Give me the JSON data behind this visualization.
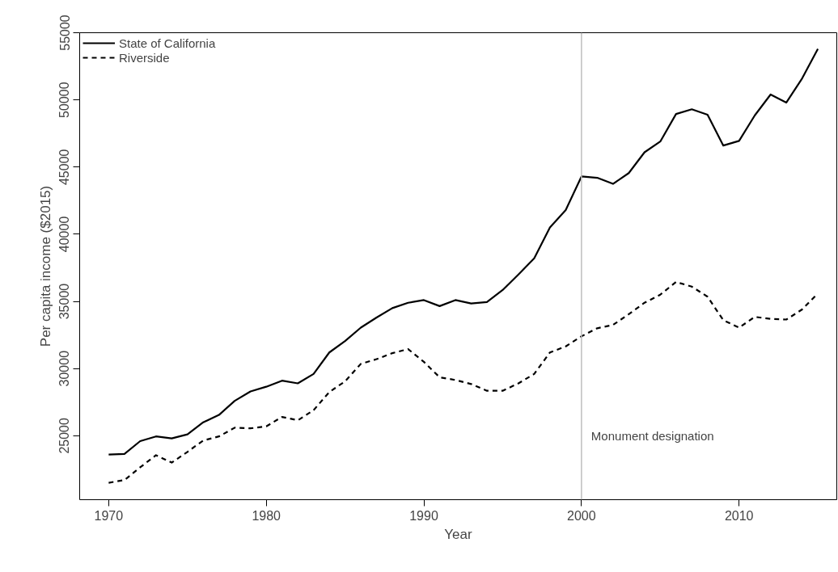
{
  "chart_data": {
    "type": "line",
    "xlabel": "Year",
    "ylabel": "Per capita income ($2015)",
    "x": [
      1970,
      1971,
      1972,
      1973,
      1974,
      1975,
      1976,
      1977,
      1978,
      1979,
      1980,
      1981,
      1982,
      1983,
      1984,
      1985,
      1986,
      1987,
      1988,
      1989,
      1990,
      1991,
      1992,
      1993,
      1994,
      1995,
      1996,
      1997,
      1998,
      1999,
      2000,
      2001,
      2002,
      2003,
      2004,
      2005,
      2006,
      2007,
      2008,
      2009,
      2010,
      2011,
      2012,
      2013,
      2014,
      2015
    ],
    "series": [
      {
        "name": "State of California",
        "color": "#000000",
        "line_style": "solid",
        "values": [
          23600,
          23650,
          24600,
          24950,
          24800,
          25100,
          26000,
          26550,
          27600,
          28300,
          28650,
          29100,
          28900,
          29600,
          31200,
          32050,
          33050,
          33800,
          34500,
          34900,
          35100,
          34650,
          35100,
          34850,
          34950,
          35850,
          37000,
          38200,
          40500,
          41800,
          44300,
          44200,
          43750,
          44550,
          46100,
          46900,
          48950,
          49300,
          48900,
          46600,
          46950,
          48850,
          50400,
          49800,
          51600,
          53800
        ]
      },
      {
        "name": "Riverside",
        "color": "#000000",
        "line_style": "dashed",
        "values": [
          21500,
          21700,
          22650,
          23550,
          23000,
          23800,
          24650,
          24950,
          25600,
          25550,
          25700,
          26400,
          26150,
          26900,
          28250,
          29050,
          30350,
          30700,
          31150,
          31450,
          30500,
          29350,
          29150,
          28850,
          28350,
          28350,
          28900,
          29600,
          31200,
          31650,
          32400,
          33000,
          33250,
          34050,
          34900,
          35500,
          36450,
          36100,
          35350,
          33600,
          33050,
          33850,
          33700,
          33650,
          34400,
          35600
        ]
      }
    ],
    "xlim": [
      1968.16,
      2016.2
    ],
    "ylim": [
      20240,
      55000
    ],
    "xticks": [
      1970,
      1980,
      1990,
      2000,
      2010
    ],
    "yticks": [
      25000,
      30000,
      35000,
      40000,
      45000,
      50000,
      55000
    ],
    "ref_lines": [
      {
        "axis": "x",
        "value": 2000,
        "label": "Monument designation",
        "color": "#bebebe"
      }
    ],
    "grid": false,
    "legend": "top left",
    "marker": "none"
  }
}
